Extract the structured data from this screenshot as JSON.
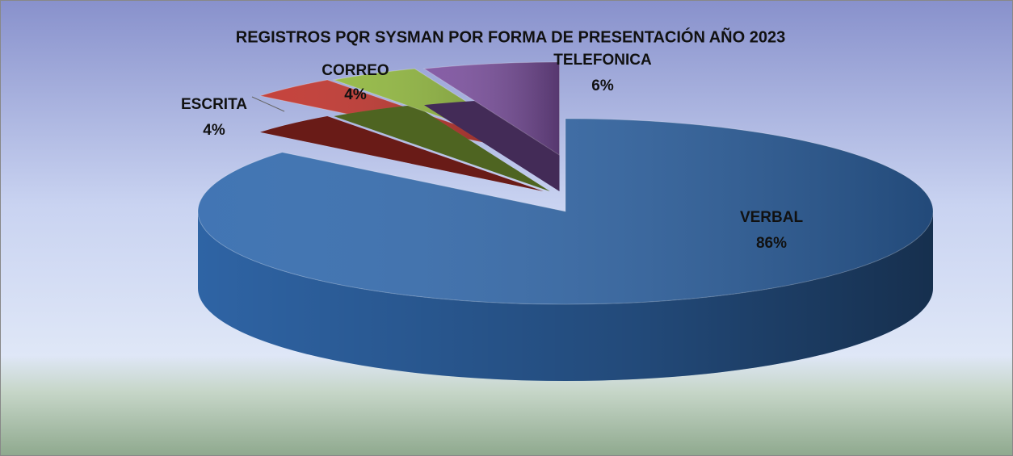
{
  "chart_data": {
    "type": "pie",
    "title": "REGISTROS PQR SYSMAN POR FORMA DE PRESENTACIÓN AÑO 2023",
    "categories": [
      "VERBAL",
      "ESCRITA",
      "CORREO",
      "TELEFONICA"
    ],
    "values": [
      86,
      4,
      4,
      6
    ],
    "value_labels": [
      "86%",
      "4%",
      "4%",
      "6%"
    ],
    "colors": [
      "#3169ad",
      "#c0322b",
      "#8fb63c",
      "#7b4f9e"
    ]
  }
}
